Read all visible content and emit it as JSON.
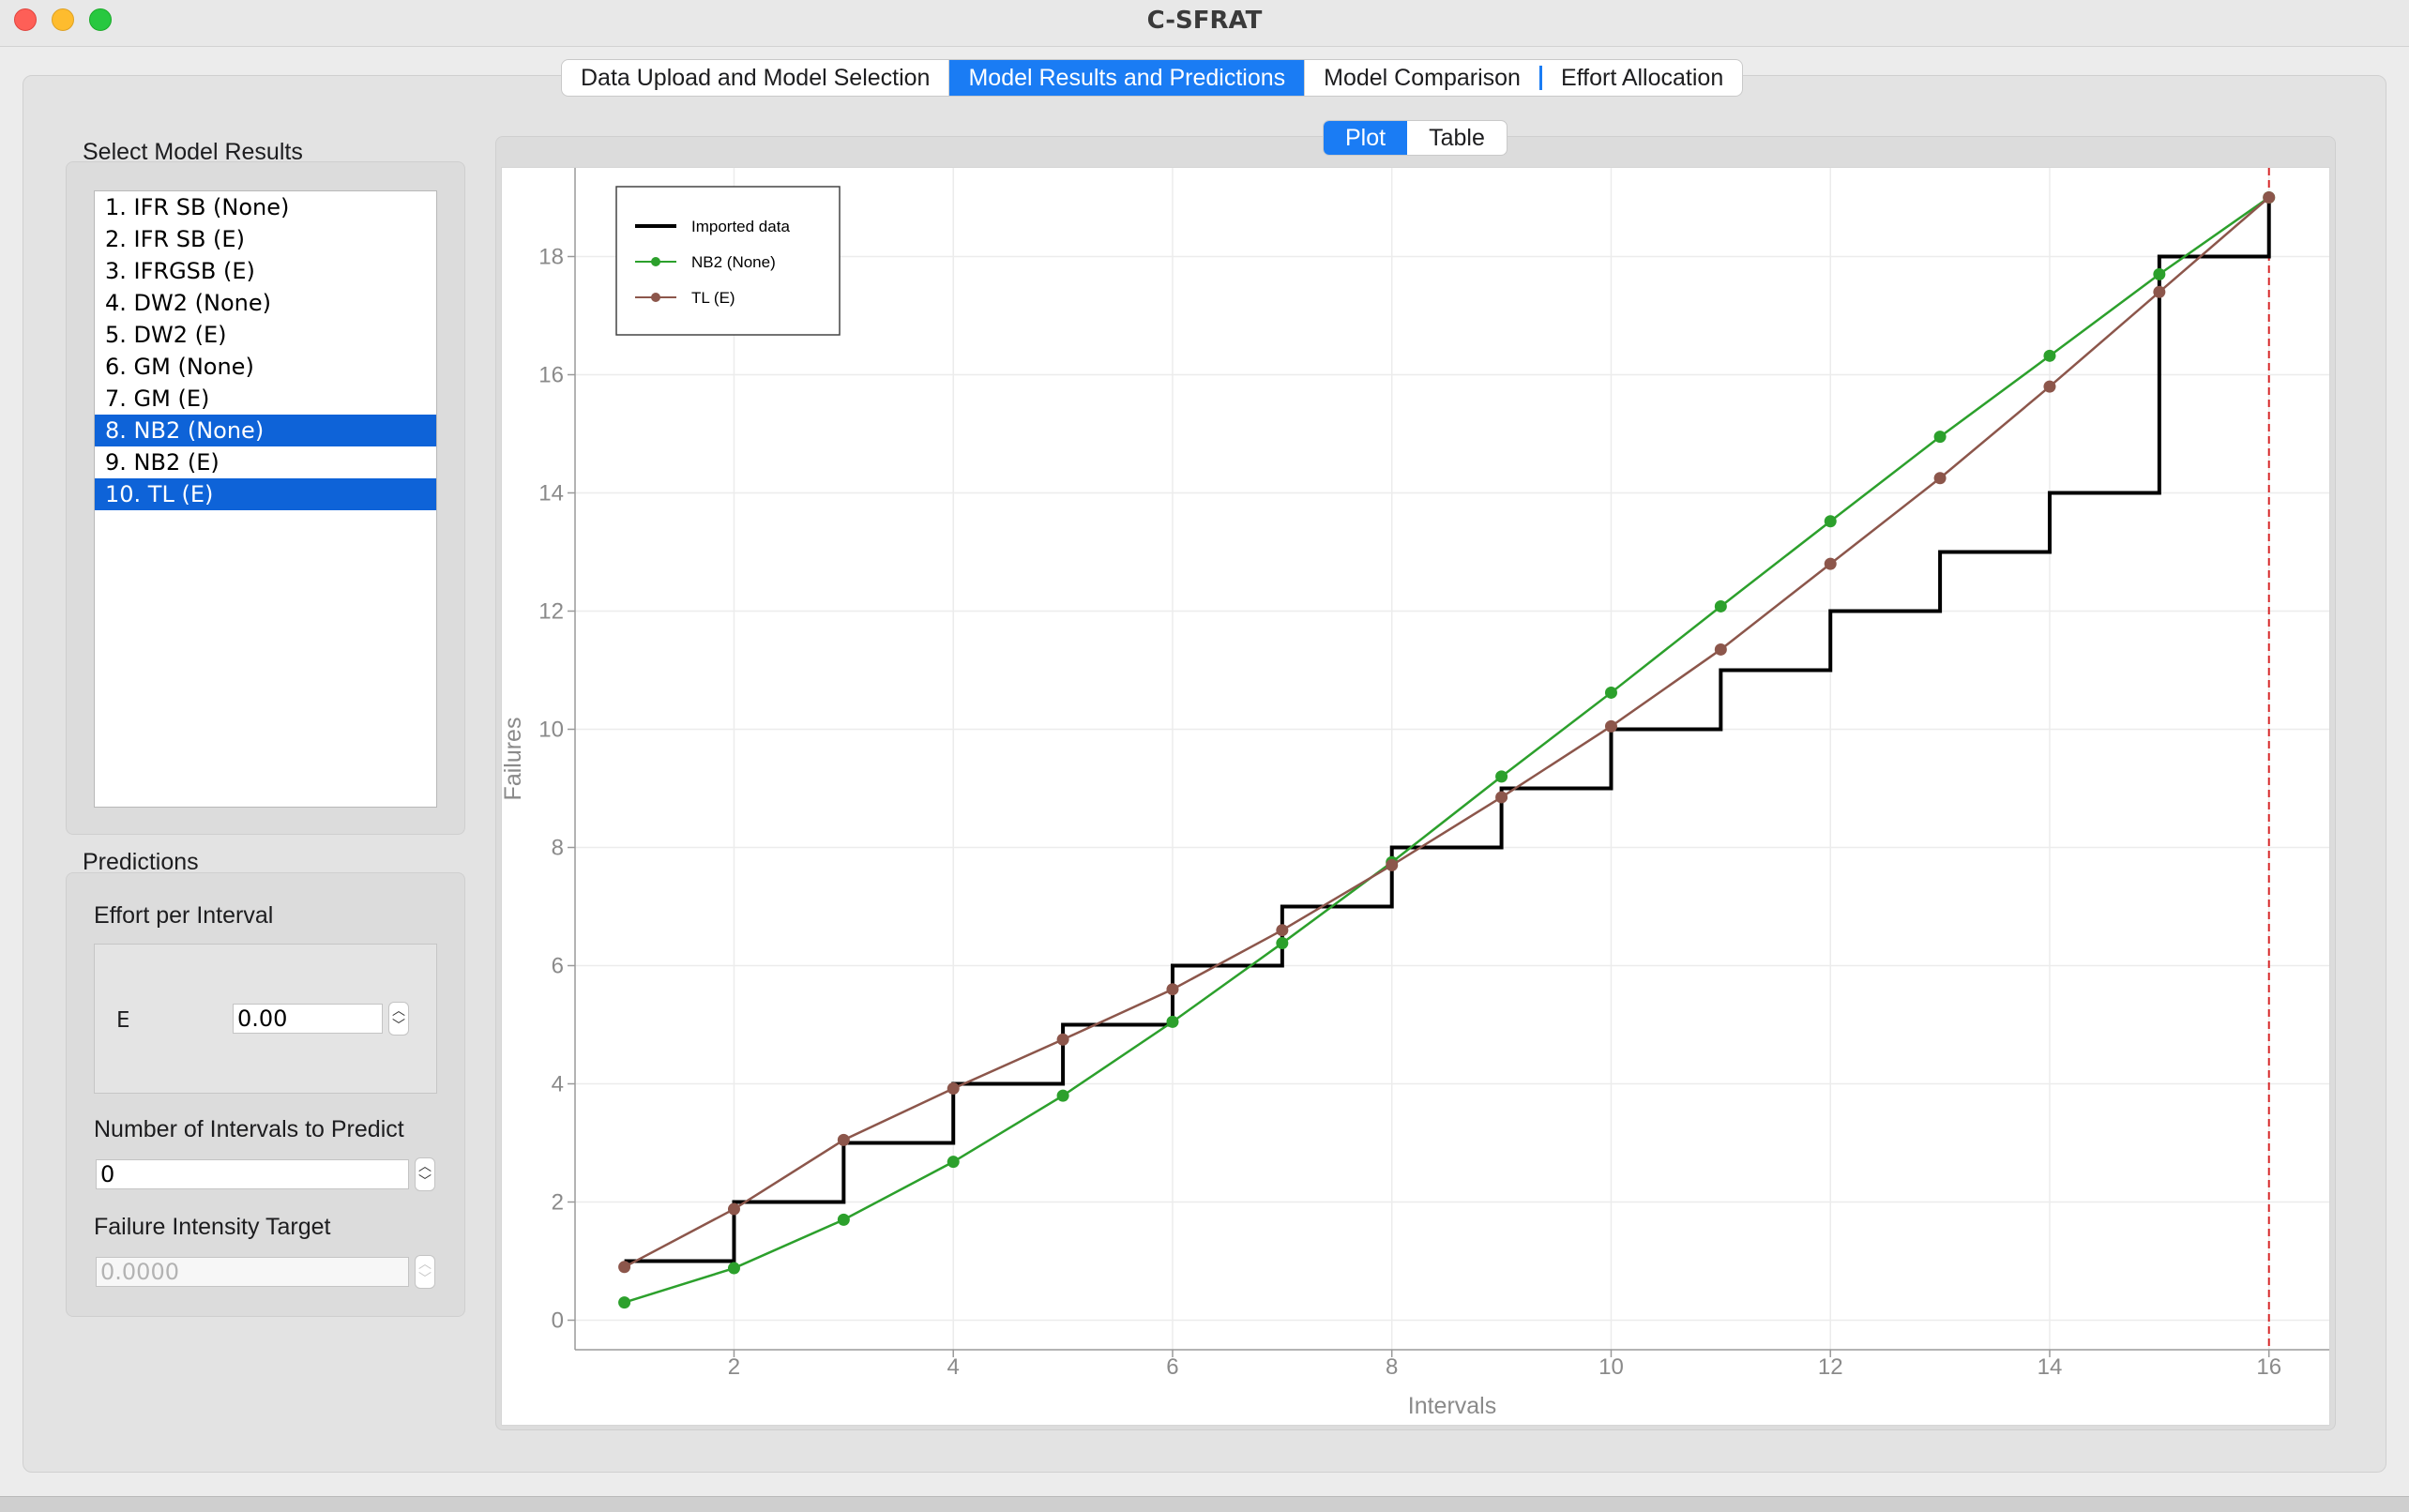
{
  "window": {
    "title": "C-SFRAT"
  },
  "tabs": [
    {
      "label": "Data Upload and Model Selection",
      "active": false
    },
    {
      "label": "Model Results and Predictions",
      "active": true
    },
    {
      "label": "Model Comparison",
      "active": false
    },
    {
      "label": "Effort Allocation",
      "active": false
    }
  ],
  "sidebar": {
    "select_title": "Select Model Results",
    "models": [
      {
        "label": "1. IFR SB (None)",
        "selected": false
      },
      {
        "label": "2. IFR SB (E)",
        "selected": false
      },
      {
        "label": "3. IFRGSB (E)",
        "selected": false
      },
      {
        "label": "4. DW2 (None)",
        "selected": false
      },
      {
        "label": "5. DW2 (E)",
        "selected": false
      },
      {
        "label": "6. GM (None)",
        "selected": false
      },
      {
        "label": "7. GM (E)",
        "selected": false
      },
      {
        "label": "8. NB2 (None)",
        "selected": true
      },
      {
        "label": "9. NB2 (E)",
        "selected": false
      },
      {
        "label": "10. TL (E)",
        "selected": true
      }
    ],
    "predictions_title": "Predictions",
    "effort_label": "Effort per Interval",
    "effort_var": "E",
    "effort_value": "0.00",
    "intervals_label": "Number of Intervals to Predict",
    "intervals_value": "0",
    "intensity_label": "Failure Intensity Target",
    "intensity_value": "0.0000"
  },
  "plot_tabs": [
    {
      "label": "Plot",
      "active": true
    },
    {
      "label": "Table",
      "active": false
    }
  ],
  "colors": {
    "accent": "#1a7cf4",
    "imported": "#000000",
    "nb2": "#2ca02c",
    "tl": "#8c564b",
    "vline": "#d62728"
  },
  "chart_data": {
    "type": "line",
    "xlabel": "Intervals",
    "ylabel": "Failures",
    "xlim": [
      0.55,
      16.55
    ],
    "ylim": [
      -0.5,
      19.5
    ],
    "xticks": [
      2,
      4,
      6,
      8,
      10,
      12,
      14,
      16
    ],
    "yticks": [
      0,
      2,
      4,
      6,
      8,
      10,
      12,
      14,
      16,
      18
    ],
    "grid": true,
    "legend_position": "top-left",
    "vertical_line_x": 16,
    "x": [
      1,
      2,
      3,
      4,
      5,
      6,
      7,
      8,
      9,
      10,
      11,
      12,
      13,
      14,
      15,
      16
    ],
    "series": [
      {
        "name": "Imported data",
        "style": "step",
        "color": "#000000",
        "values": [
          1,
          2,
          3,
          4,
          5,
          6,
          7,
          8,
          9,
          10,
          11,
          12,
          13,
          14,
          18,
          19
        ]
      },
      {
        "name": "NB2 (None)",
        "style": "line-markers",
        "color": "#2ca02c",
        "values": [
          0.3,
          0.88,
          1.7,
          2.68,
          3.8,
          5.05,
          6.38,
          7.75,
          9.2,
          10.62,
          12.08,
          13.52,
          14.95,
          16.32,
          17.7,
          19.0
        ]
      },
      {
        "name": "TL (E)",
        "style": "line-markers",
        "color": "#8c564b",
        "values": [
          0.9,
          1.88,
          3.05,
          3.92,
          4.75,
          5.6,
          6.6,
          7.7,
          8.85,
          10.05,
          11.35,
          12.8,
          14.25,
          15.8,
          17.4,
          19.0
        ]
      }
    ]
  }
}
